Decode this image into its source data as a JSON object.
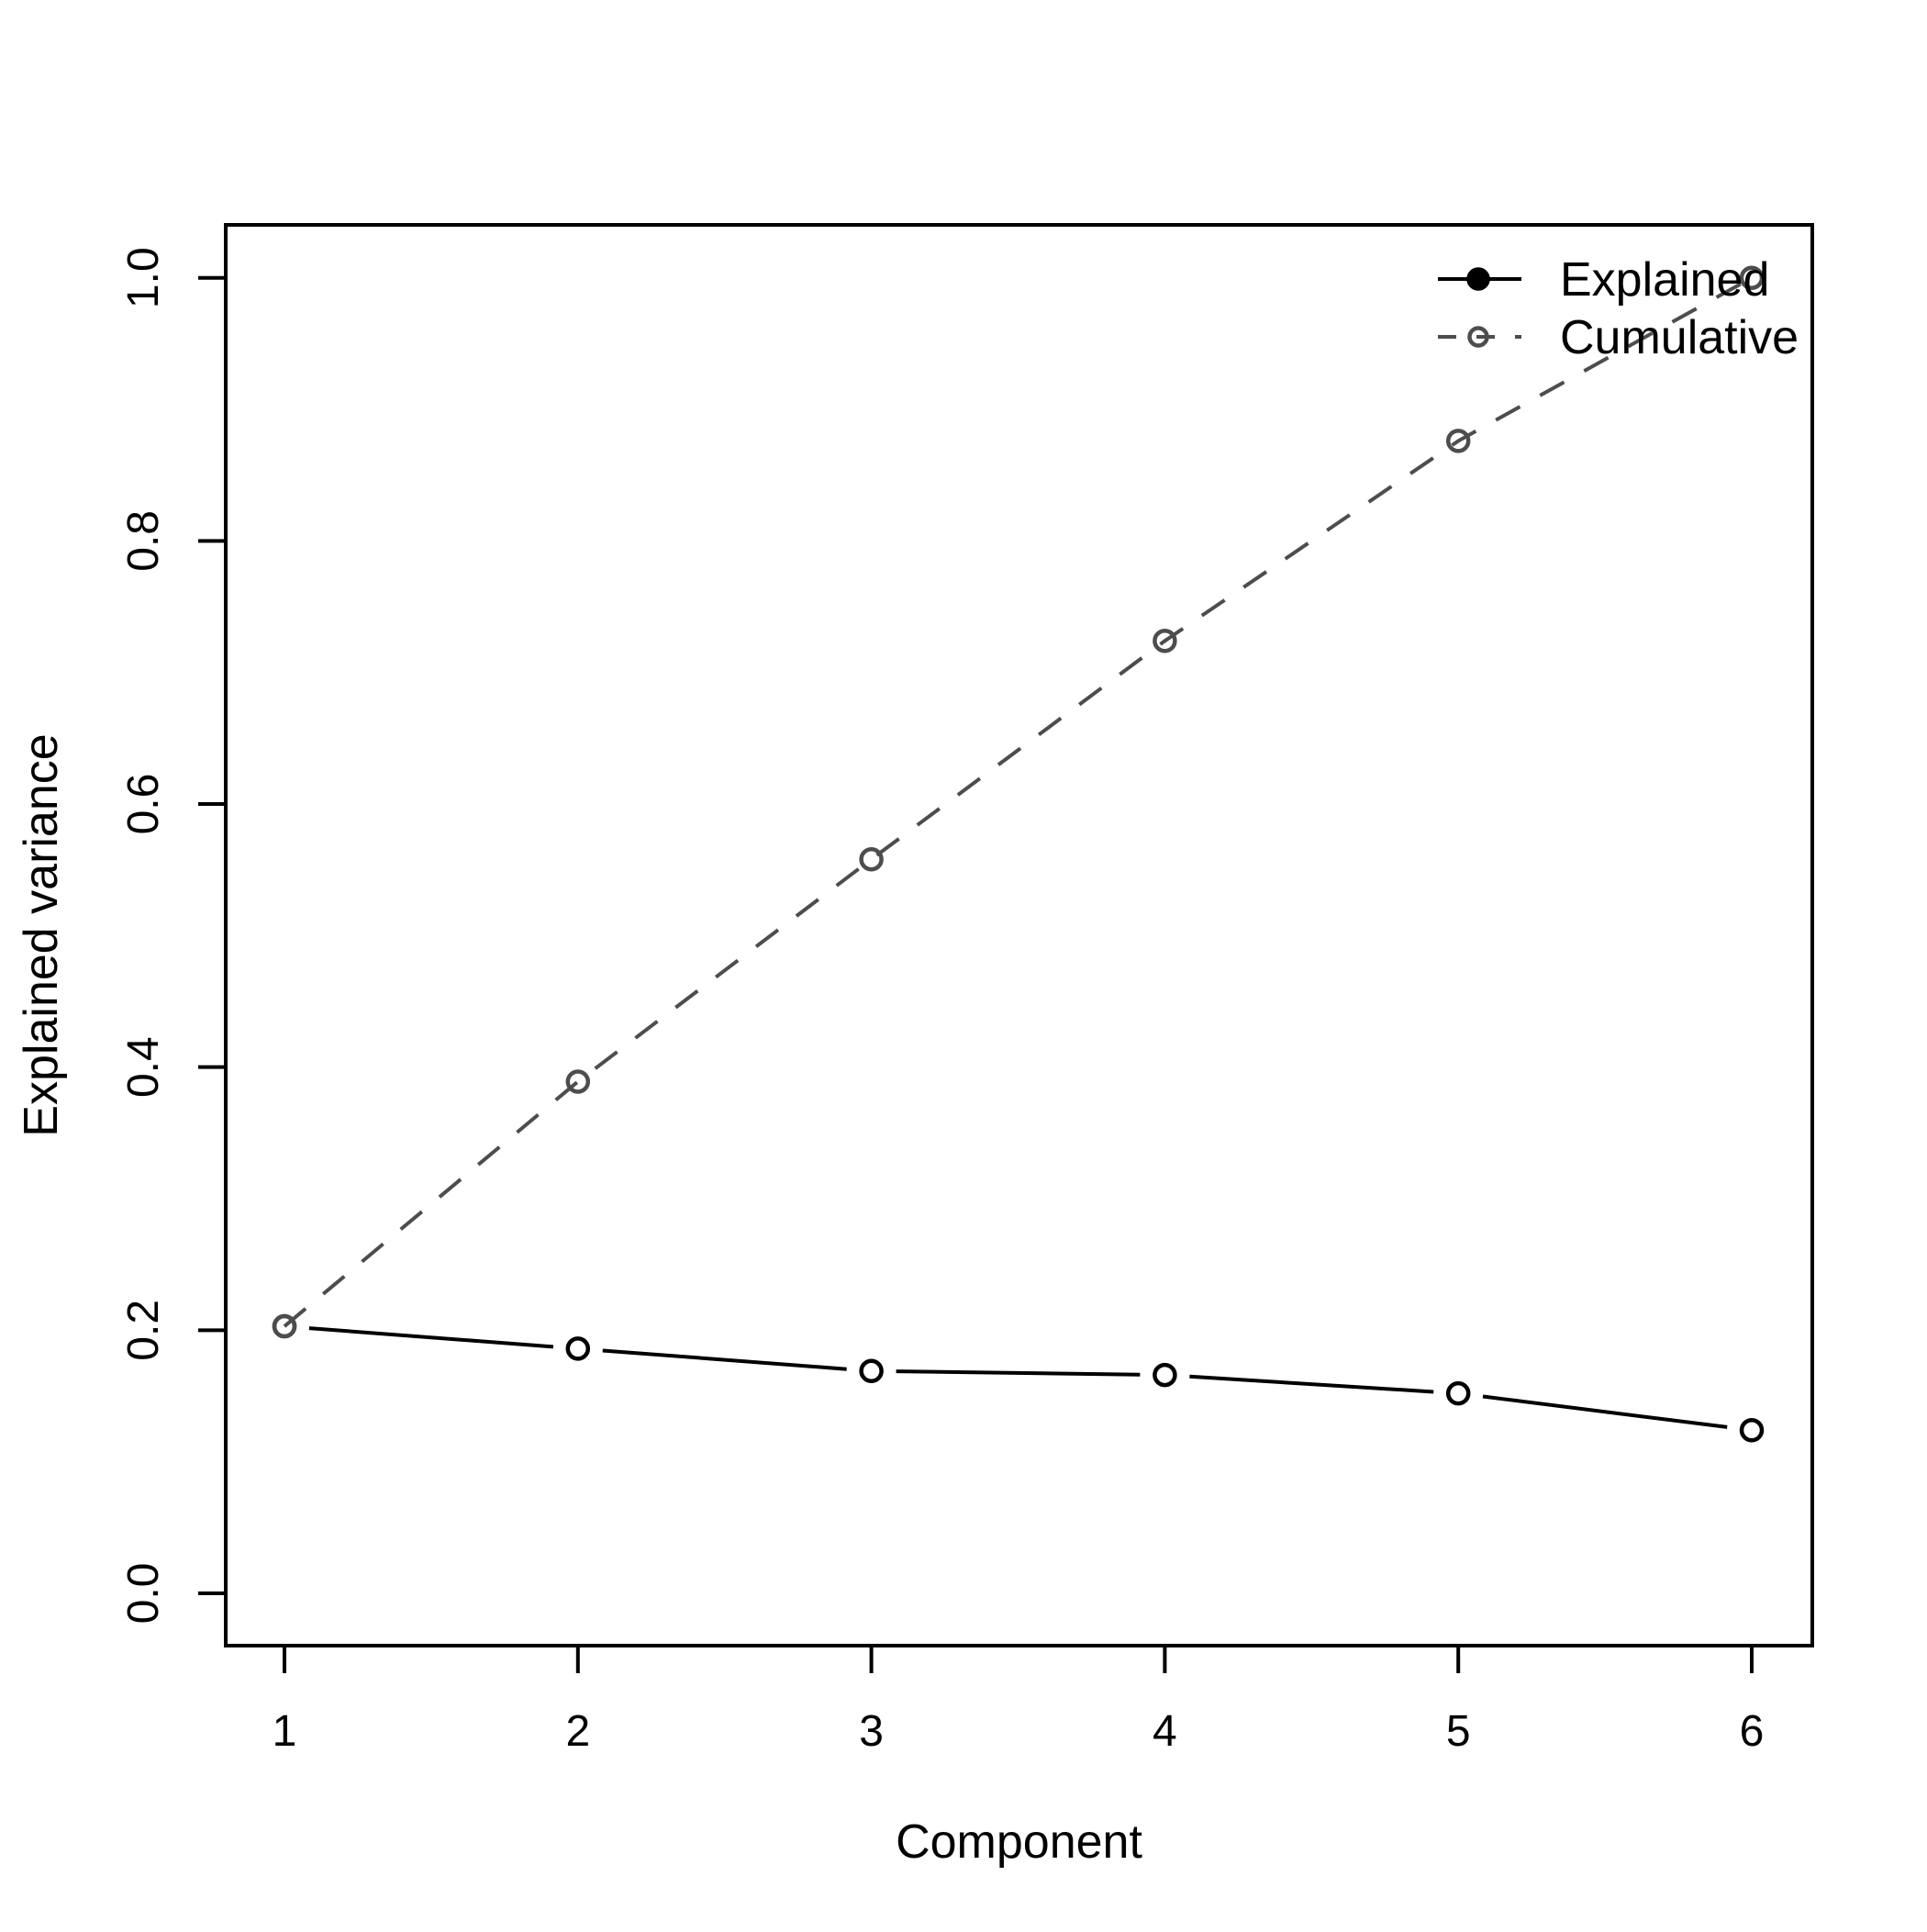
{
  "figure": {
    "background": "#ffffff",
    "axis_color": "#000000"
  },
  "chart_data": {
    "type": "line",
    "x": [
      1,
      2,
      3,
      4,
      5,
      6
    ],
    "series": [
      {
        "name": "Explained",
        "values": [
          0.203,
          0.186,
          0.169,
          0.166,
          0.152,
          0.124
        ],
        "color": "#000000",
        "line_style": "solid",
        "marker": "open-circle",
        "draw_mode": "points-with-line-gaps"
      },
      {
        "name": "Cumulative",
        "values": [
          0.203,
          0.389,
          0.558,
          0.724,
          0.876,
          1.0
        ],
        "color": "#4d4d4d",
        "line_style": "dashed",
        "marker": "open-circle",
        "draw_mode": "line-through-points"
      }
    ],
    "title": "",
    "xlabel": "Component",
    "ylabel": "Explained variance",
    "xlim": [
      1,
      6
    ],
    "ylim": [
      0.0,
      1.0
    ],
    "x_ticks": [
      "1",
      "2",
      "3",
      "4",
      "5",
      "6"
    ],
    "y_ticks": [
      0.0,
      0.2,
      0.4,
      0.6,
      0.8,
      1.0
    ],
    "y_tick_labels": [
      "0.0",
      "0.2",
      "0.4",
      "0.6",
      "0.8",
      "1.0"
    ],
    "grid": false,
    "legend": {
      "position": "top-right",
      "entries": [
        {
          "label": "Explained",
          "line": "solid",
          "marker": "filled-circle",
          "color": "#000000"
        },
        {
          "label": "Cumulative",
          "line": "dashed",
          "marker": "open-circle",
          "color": "#4d4d4d"
        }
      ]
    }
  }
}
